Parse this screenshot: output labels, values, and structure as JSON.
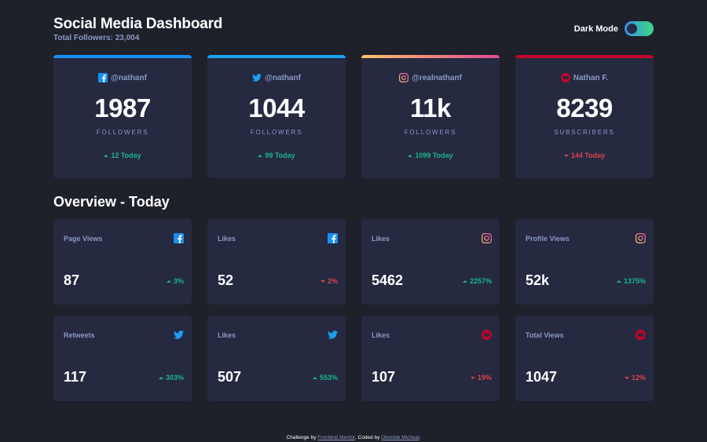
{
  "header": {
    "title": "Social Media Dashboard",
    "subtitle": "Total Followers: 23,004",
    "toggle_label": "Dark Mode"
  },
  "colors": {
    "facebook": "#198ff5",
    "twitter": "#1ca0f2",
    "instagram_start": "#fdc468",
    "instagram_end": "#df4996",
    "youtube": "#c4032a",
    "up": "#1db489",
    "down": "#dc414c"
  },
  "cards": [
    {
      "network": "facebook",
      "icon": "facebook-icon",
      "handle": "@nathanf",
      "count": "1987",
      "unit": "FOLLOWERS",
      "today": "12 Today",
      "trend": "up"
    },
    {
      "network": "twitter",
      "icon": "twitter-icon",
      "handle": "@nathanf",
      "count": "1044",
      "unit": "FOLLOWERS",
      "today": "99 Today",
      "trend": "up"
    },
    {
      "network": "instagram",
      "icon": "instagram-icon",
      "handle": "@realnathanf",
      "count": "11k",
      "unit": "FOLLOWERS",
      "today": "1099 Today",
      "trend": "up"
    },
    {
      "network": "youtube",
      "icon": "youtube-icon",
      "handle": "Nathan F.",
      "count": "8239",
      "unit": "SUBSCRIBERS",
      "today": "144 Today",
      "trend": "down"
    }
  ],
  "overview": {
    "title": "Overview - Today",
    "items": [
      {
        "label": "Page Views",
        "icon": "facebook-icon",
        "value": "87",
        "pct": "3%",
        "trend": "up"
      },
      {
        "label": "Likes",
        "icon": "facebook-icon",
        "value": "52",
        "pct": "2%",
        "trend": "down"
      },
      {
        "label": "Likes",
        "icon": "instagram-icon",
        "value": "5462",
        "pct": "2257%",
        "trend": "up"
      },
      {
        "label": "Profile Views",
        "icon": "instagram-icon",
        "value": "52k",
        "pct": "1375%",
        "trend": "up"
      },
      {
        "label": "Retweets",
        "icon": "twitter-icon",
        "value": "117",
        "pct": "303%",
        "trend": "up"
      },
      {
        "label": "Likes",
        "icon": "twitter-icon",
        "value": "507",
        "pct": "553%",
        "trend": "up"
      },
      {
        "label": "Likes",
        "icon": "youtube-icon",
        "value": "107",
        "pct": "19%",
        "trend": "down"
      },
      {
        "label": "Total Views",
        "icon": "youtube-icon",
        "value": "1047",
        "pct": "12%",
        "trend": "down"
      }
    ]
  },
  "footer": {
    "prefix": "Challenge by",
    "link1": "Frontend Mentor",
    "middle": ". Coded by",
    "link2": "Olumide Micheal",
    "suffix": "."
  }
}
